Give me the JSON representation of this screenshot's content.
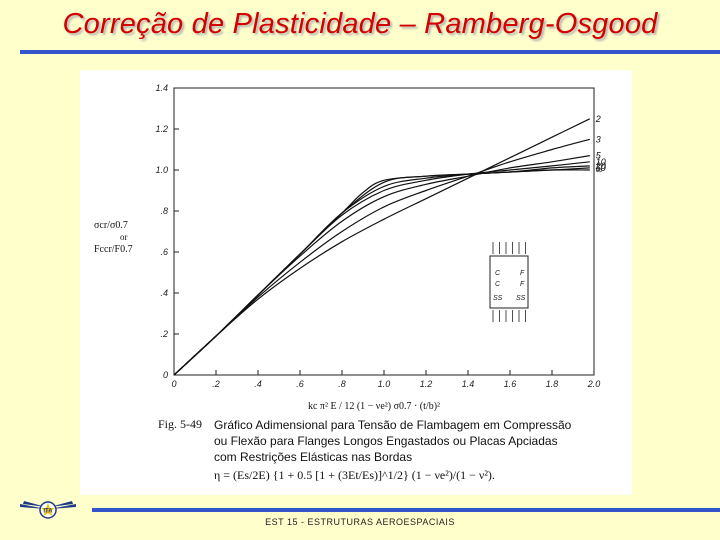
{
  "slide": {
    "title": "Correção de Plasticidade – Ramberg-Osgood",
    "footer": "EST 15 - ESTRUTURAS AEROESPACIAIS"
  },
  "colors": {
    "title": "#d40000",
    "rule": "#3355cc",
    "background": "#ffffcc"
  },
  "logo": {
    "icon": "ita-wings-logo-icon",
    "text": "ITA"
  },
  "caption": {
    "fig_label": "Fig. 5-49",
    "line1": "Gráfico Adimensional para Tensão de Flambagem em Compressão",
    "line2": "ou Flexão para Flanges Longos Engastados ou Placas Apciadas",
    "line3": "com Restrições Elásticas nas Bordas",
    "formula": "η = (Es/2E) {1 + 0.5 [1 + (3Et/Es)]^1/2} (1 − νe²)/(1 − ν²)."
  },
  "chart_data": {
    "type": "line",
    "xlabel": "kc π² E / 12 (1 − νe²) σ0.7 · (t/b)²",
    "ylabel": "σcr/σ0.7 or Fccr/F0.7",
    "xlim": [
      0,
      2.0
    ],
    "ylim": [
      0,
      1.4
    ],
    "x_ticks": [
      "0",
      ".2",
      ".4",
      ".6",
      ".8",
      "1.0",
      "1.2",
      "1.4",
      "1.6",
      "1.8",
      "2.0"
    ],
    "y_ticks": [
      "0",
      ".2",
      ".4",
      ".6",
      ".8",
      "1.0",
      "1.2",
      "1.4"
    ],
    "series": [
      {
        "name": "2",
        "x": [
          0,
          0.2,
          0.4,
          0.6,
          0.8,
          1.0,
          1.2,
          1.4,
          1.6,
          1.8,
          1.98
        ],
        "y": [
          0,
          0.19,
          0.37,
          0.52,
          0.65,
          0.76,
          0.86,
          0.96,
          1.06,
          1.16,
          1.25
        ]
      },
      {
        "name": "3",
        "x": [
          0,
          0.2,
          0.4,
          0.6,
          0.8,
          1.0,
          1.2,
          1.4,
          1.6,
          1.8,
          1.98
        ],
        "y": [
          0,
          0.19,
          0.38,
          0.55,
          0.7,
          0.82,
          0.9,
          0.97,
          1.04,
          1.1,
          1.15
        ]
      },
      {
        "name": "5",
        "x": [
          0,
          0.2,
          0.4,
          0.6,
          0.8,
          1.0,
          1.2,
          1.4,
          1.6,
          1.8,
          1.98
        ],
        "y": [
          0,
          0.19,
          0.39,
          0.58,
          0.75,
          0.87,
          0.93,
          0.97,
          1.01,
          1.04,
          1.07
        ]
      },
      {
        "name": "10",
        "x": [
          0,
          0.2,
          0.4,
          0.6,
          0.8,
          1.0,
          1.2,
          1.4,
          1.6,
          1.8,
          1.98
        ],
        "y": [
          0,
          0.19,
          0.39,
          0.59,
          0.78,
          0.9,
          0.95,
          0.98,
          1.0,
          1.02,
          1.04
        ]
      },
      {
        "name": "20",
        "x": [
          0,
          0.2,
          0.4,
          0.6,
          0.8,
          1.0,
          1.2,
          1.4,
          1.6,
          1.8,
          1.98
        ],
        "y": [
          0,
          0.19,
          0.39,
          0.59,
          0.79,
          0.92,
          0.96,
          0.98,
          0.99,
          1.01,
          1.02
        ]
      },
      {
        "name": "50",
        "x": [
          0,
          0.2,
          0.4,
          0.6,
          0.8,
          1.0,
          1.2,
          1.4,
          1.6,
          1.8,
          1.98
        ],
        "y": [
          0,
          0.19,
          0.39,
          0.59,
          0.79,
          0.94,
          0.97,
          0.98,
          0.99,
          1.0,
          1.01
        ]
      },
      {
        "name": "∞",
        "x": [
          0,
          0.2,
          0.4,
          0.6,
          0.8,
          0.9,
          1.0,
          1.2,
          1.4,
          1.6,
          1.8,
          1.98
        ],
        "y": [
          0,
          0.19,
          0.39,
          0.59,
          0.79,
          0.89,
          0.95,
          0.97,
          0.98,
          0.99,
          1.0,
          1.0
        ]
      }
    ],
    "inset_labels": [
      "C",
      "F",
      "C",
      "F",
      "SS",
      "SS"
    ],
    "grid": false
  }
}
